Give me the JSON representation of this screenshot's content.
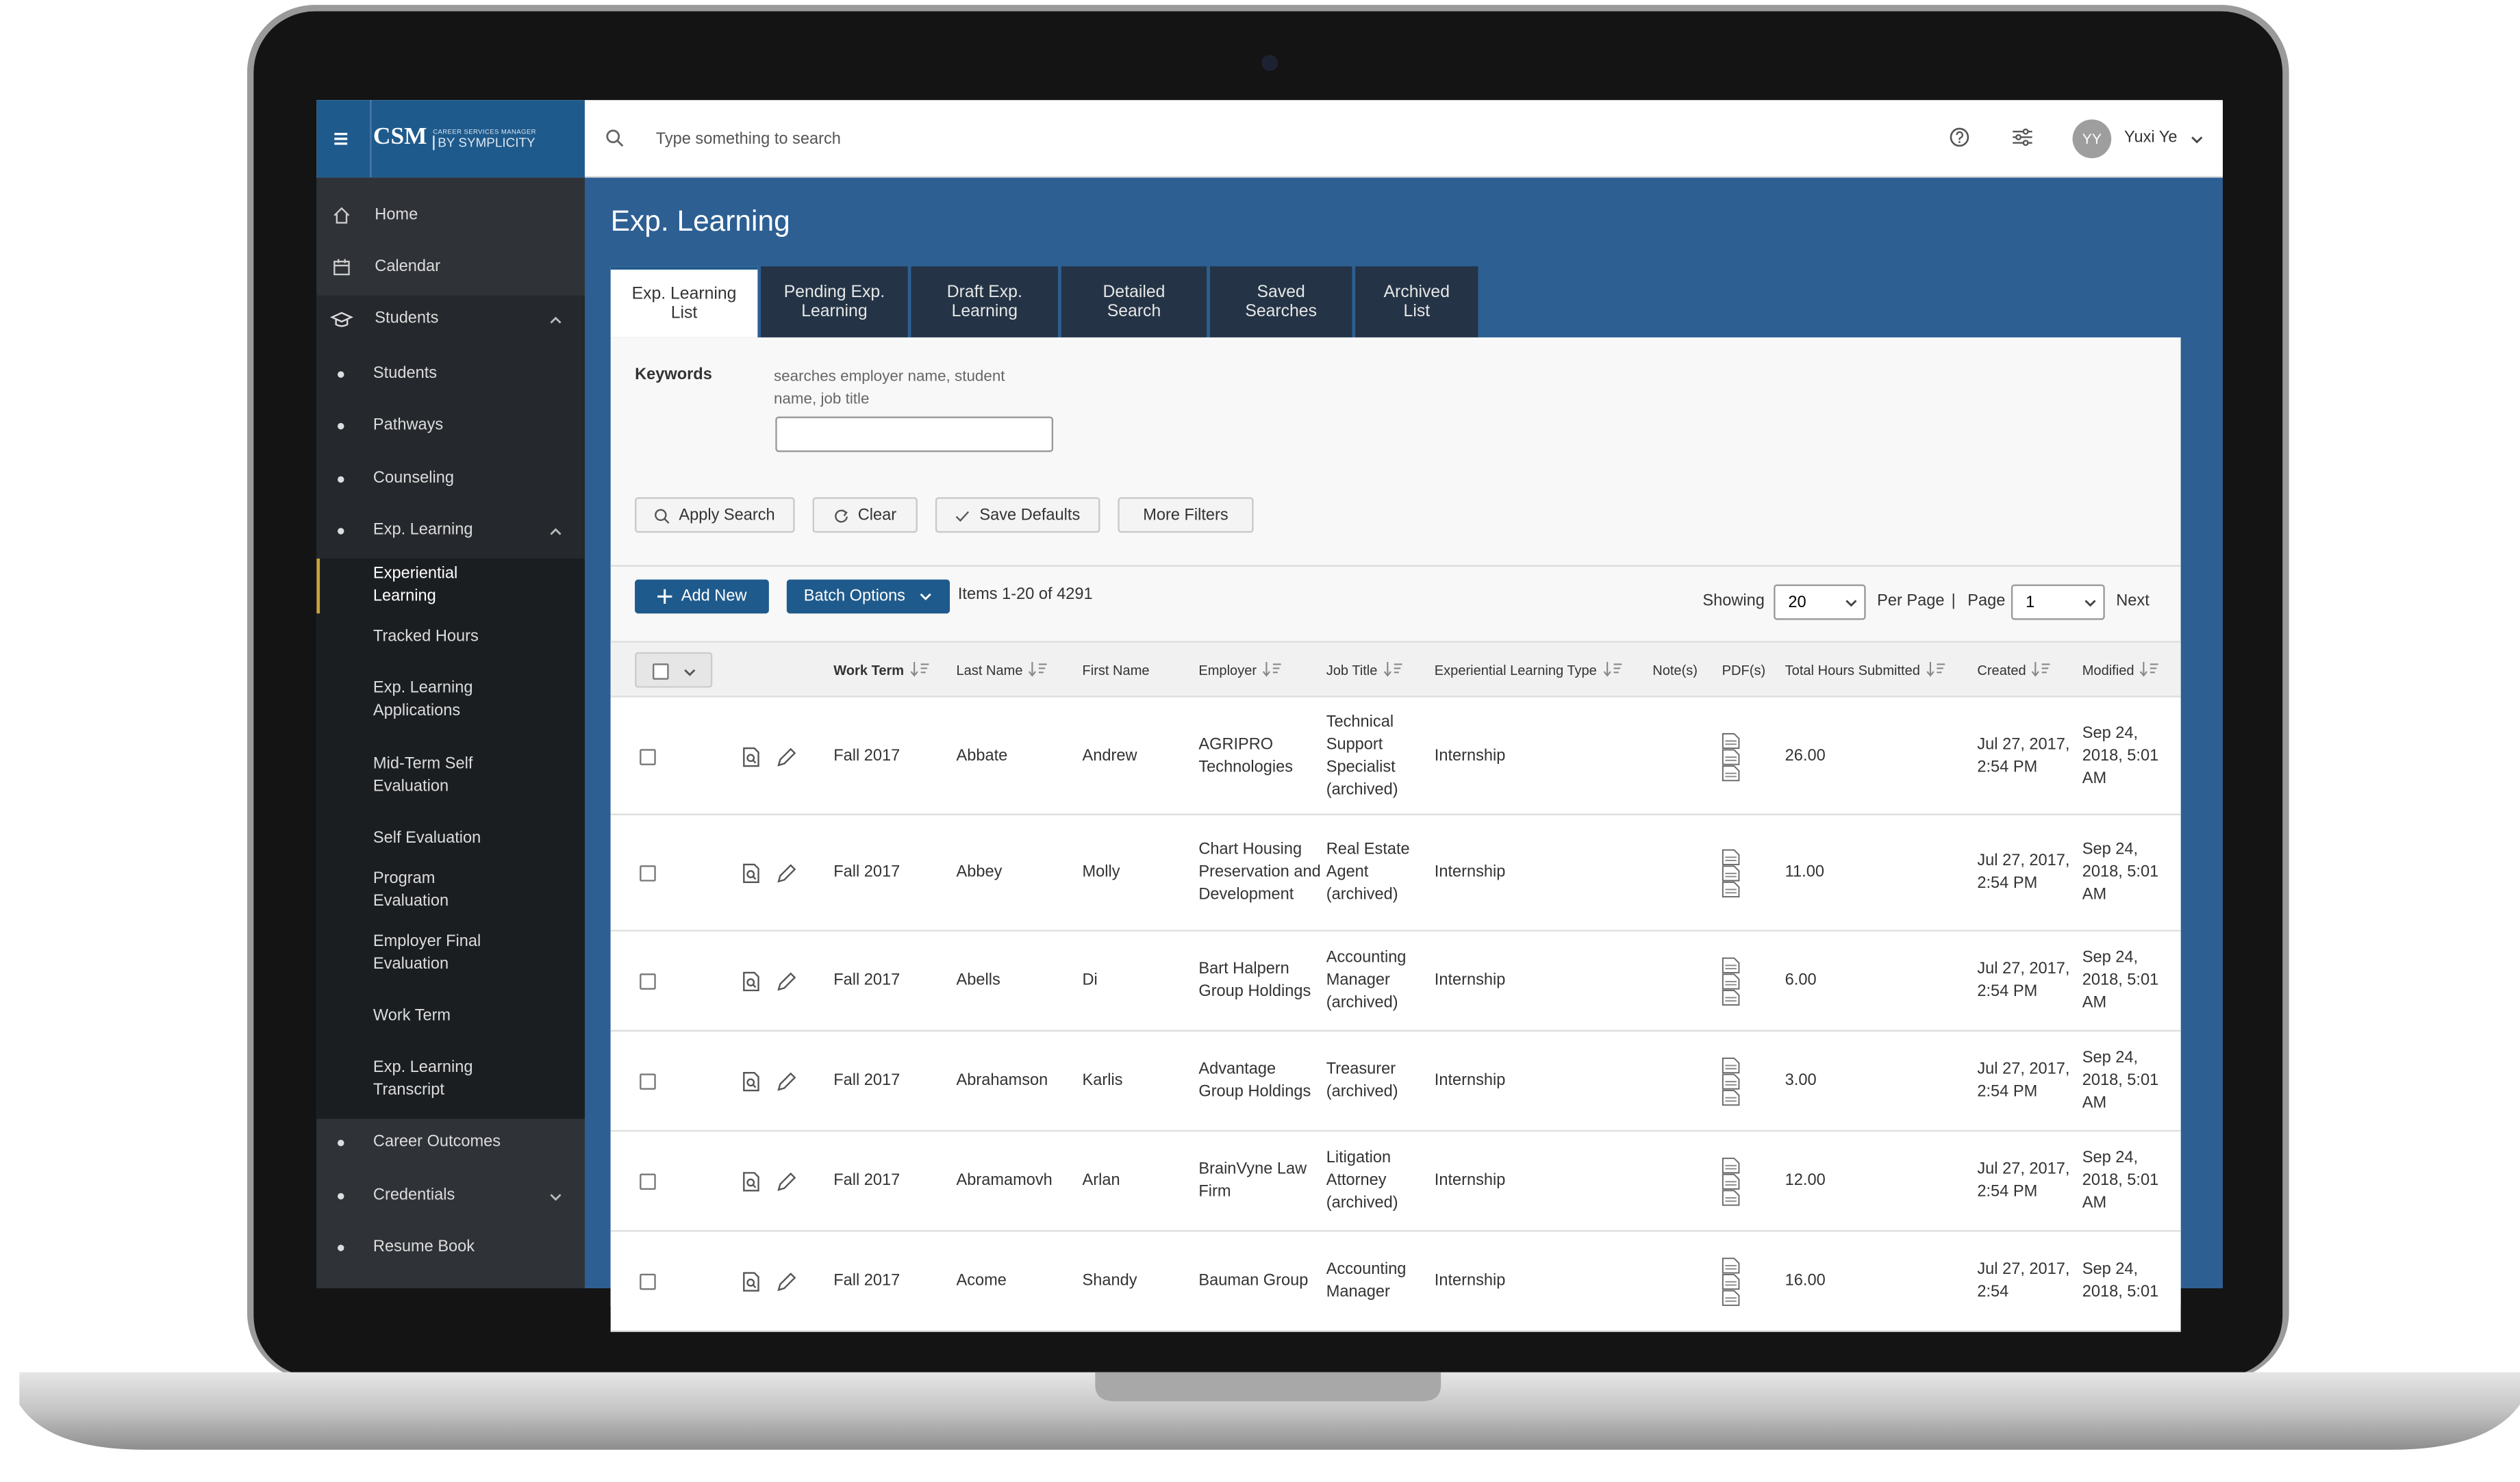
{
  "header": {
    "logo": "CSM",
    "logo_tagline": "CAREER SERVICES MANAGER",
    "logo_brand": "BY SYMPLICITY",
    "search_placeholder": "Type something to search",
    "user_initials": "YY",
    "user_name": "Yuxi Ye"
  },
  "sidebar": [
    {
      "label": "Home",
      "level": 1
    },
    {
      "label": "Calendar",
      "level": 1
    },
    {
      "label": "Students",
      "level": 1,
      "expanded": true
    },
    {
      "label": "Students",
      "level": 2
    },
    {
      "label": "Pathways",
      "level": 2
    },
    {
      "label": "Counseling",
      "level": 2
    },
    {
      "label": "Exp. Learning",
      "level": 2,
      "expanded": true
    },
    {
      "label": "Experiential Learning",
      "level": 3,
      "active": true
    },
    {
      "label": "Tracked Hours",
      "level": 3
    },
    {
      "label": "Exp. Learning Applications",
      "level": 3
    },
    {
      "label": "Mid-Term Self Evaluation",
      "level": 3
    },
    {
      "label": "Self Evaluation",
      "level": 3
    },
    {
      "label": "Program Evaluation",
      "level": 3
    },
    {
      "label": "Employer Final Evaluation",
      "level": 3
    },
    {
      "label": "Work Term",
      "level": 3
    },
    {
      "label": "Exp. Learning Transcript",
      "level": 3
    },
    {
      "label": "Career Outcomes",
      "level": 2
    },
    {
      "label": "Credentials",
      "level": 2,
      "expanded": false
    },
    {
      "label": "Resume Book",
      "level": 2
    }
  ],
  "page_title": "Exp. Learning",
  "tabs": [
    {
      "label": "Exp. Learning List",
      "active": true
    },
    {
      "label": "Pending Exp. Learning"
    },
    {
      "label": "Draft Exp. Learning"
    },
    {
      "label": "Detailed Search"
    },
    {
      "label": "Saved Searches"
    },
    {
      "label": "Archived List"
    }
  ],
  "search": {
    "keywords_label": "Keywords",
    "keywords_hint": "searches employer name, student name, job title",
    "buttons": [
      "Apply Search",
      "Clear",
      "Save Defaults",
      "More Filters"
    ]
  },
  "toolbar": {
    "add_new": "Add New",
    "batch_options": "Batch Options",
    "items_summary": "Items 1-20 of 4291",
    "showing_label": "Showing",
    "per_page_value": "20",
    "per_page_label": "Per Page",
    "separator": "|",
    "page_label": "Page",
    "page_value": "1",
    "next": "Next"
  },
  "table": {
    "columns": [
      {
        "label": "Work Term",
        "sortable": true
      },
      {
        "label": "Last Name",
        "sortable": true
      },
      {
        "label": "First Name"
      },
      {
        "label": "Employer",
        "sortable": true
      },
      {
        "label": "Job Title",
        "sortable": true
      },
      {
        "label": "Experiential Learning Type",
        "sortable": true
      },
      {
        "label": "Note(s)"
      },
      {
        "label": "PDF(s)"
      },
      {
        "label": "Total Hours Submitted",
        "sortable": true
      },
      {
        "label": "Created",
        "sortable": true
      },
      {
        "label": "Modified",
        "sortable": true
      }
    ],
    "rows": [
      [
        "Fall 2017",
        "Abbate",
        "Andrew",
        "AGRIPRO Technologies",
        "Technical Support Specialist (archived)",
        "Internship",
        "26.00",
        "Jul 27, 2017, 2:54 PM",
        "Sep 24, 2018, 5:01 AM"
      ],
      [
        "Fall 2017",
        "Abbey",
        "Molly",
        "Chart Housing Preservation and Development",
        "Real Estate Agent (archived)",
        "Internship",
        "11.00",
        "Jul 27, 2017, 2:54 PM",
        "Sep 24, 2018, 5:01 AM"
      ],
      [
        "Fall 2017",
        "Abells",
        "Di",
        "Bart Halpern Group Holdings",
        "Accounting Manager (archived)",
        "Internship",
        "6.00",
        "Jul 27, 2017, 2:54 PM",
        "Sep 24, 2018, 5:01 AM"
      ],
      [
        "Fall 2017",
        "Abrahamson",
        "Karlis",
        "Advantage Group Holdings",
        "Treasurer (archived)",
        "Internship",
        "3.00",
        "Jul 27, 2017, 2:54 PM",
        "Sep 24, 2018, 5:01 AM"
      ],
      [
        "Fall 2017",
        "Abramamovh",
        "Arlan",
        "BrainVyne Law Firm",
        "Litigation Attorney (archived)",
        "Internship",
        "12.00",
        "Jul 27, 2017, 2:54 PM",
        "Sep 24, 2018, 5:01 AM"
      ],
      [
        "Fall 2017",
        "Acome",
        "Shandy",
        "Bauman Group",
        "Accounting Manager",
        "Internship",
        "16.00",
        "Jul 27, 2017, 2:54",
        "Sep 24, 2018, 5:01"
      ]
    ]
  }
}
